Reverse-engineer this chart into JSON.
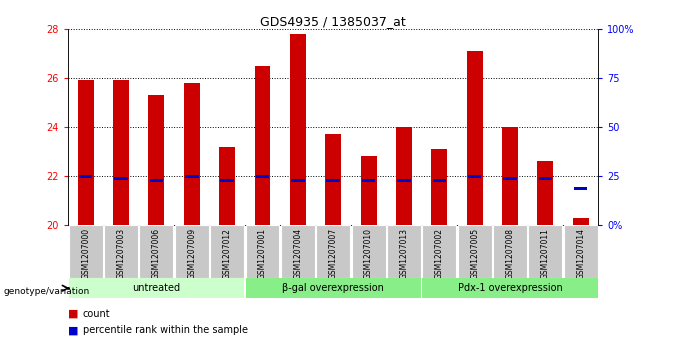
{
  "title": "GDS4935 / 1385037_at",
  "samples": [
    "GSM1207000",
    "GSM1207003",
    "GSM1207006",
    "GSM1207009",
    "GSM1207012",
    "GSM1207001",
    "GSM1207004",
    "GSM1207007",
    "GSM1207010",
    "GSM1207013",
    "GSM1207002",
    "GSM1207005",
    "GSM1207008",
    "GSM1207011",
    "GSM1207014"
  ],
  "counts": [
    25.9,
    25.9,
    25.3,
    25.8,
    23.2,
    26.5,
    27.8,
    23.7,
    22.8,
    24.0,
    23.1,
    27.1,
    24.0,
    22.6,
    20.3
  ],
  "percentiles": [
    22.0,
    21.9,
    21.8,
    22.0,
    21.8,
    22.0,
    21.8,
    21.8,
    21.8,
    21.8,
    21.8,
    22.0,
    21.9,
    21.9,
    21.5
  ],
  "bar_color": "#cc0000",
  "percentile_color": "#0000cc",
  "ylim_left": [
    20,
    28
  ],
  "ylim_right": [
    0,
    100
  ],
  "yticks_left": [
    20,
    22,
    24,
    26,
    28
  ],
  "yticks_right": [
    0,
    25,
    50,
    75,
    100
  ],
  "ytick_labels_right": [
    "0%",
    "25",
    "50",
    "75",
    "100%"
  ],
  "groups": [
    {
      "label": "untreated",
      "start": 0,
      "end": 4,
      "color": "#ccffcc"
    },
    {
      "label": "β-gal overexpression",
      "start": 5,
      "end": 9,
      "color": "#88ee88"
    },
    {
      "label": "Pdx-1 overexpression",
      "start": 10,
      "end": 14,
      "color": "#88ee88"
    }
  ],
  "genotype_label": "genotype/variation",
  "legend_count_label": "count",
  "legend_percentile_label": "percentile rank within the sample",
  "bar_bottom": 20,
  "bar_width": 0.45,
  "xtick_bg": "#c8c8c8"
}
